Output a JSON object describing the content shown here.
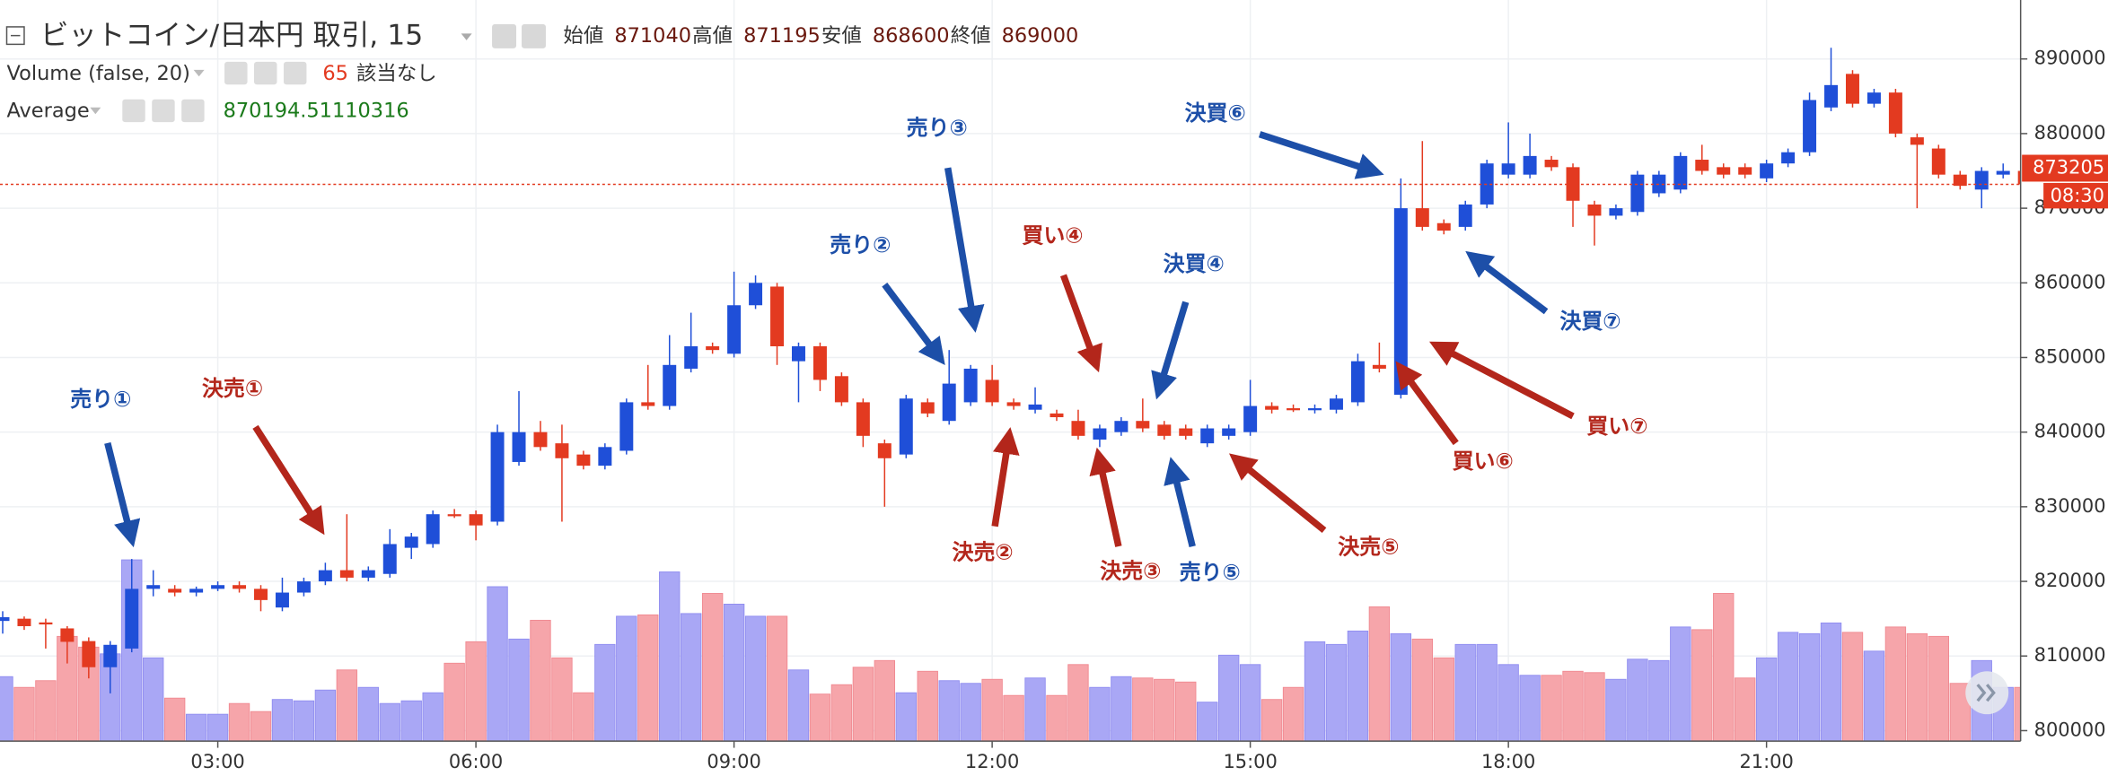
{
  "chart_data": {
    "type": "candlestick",
    "title": "ビットコイン/日本円 取引, 15",
    "ohlc_labels": [
      "始値",
      "高値",
      "安値",
      "終値"
    ],
    "ohlc_values": [
      871040,
      871195,
      868600,
      869000
    ],
    "indicators": [
      {
        "name": "Volume (false, 20)",
        "value": 65,
        "note": "該当なし"
      },
      {
        "name": "Average",
        "value": 870194.51110316
      }
    ],
    "last_price": 873205,
    "countdown": "08:30",
    "up_color": "#1f4fd8",
    "down_color": "#e33a20",
    "volume_up_color": "#a9a7f5",
    "volume_down_color": "#f6a5aa",
    "grid": true,
    "x": [
      "00:30",
      "00:45",
      "01:00",
      "01:15",
      "01:30",
      "01:45",
      "02:00",
      "02:15",
      "02:30",
      "02:45",
      "03:00",
      "03:15",
      "03:30",
      "03:45",
      "04:00",
      "04:15",
      "04:30",
      "04:45",
      "05:00",
      "05:15",
      "05:30",
      "05:45",
      "06:00",
      "06:15",
      "06:30",
      "06:45",
      "07:00",
      "07:15",
      "07:30",
      "07:45",
      "08:00",
      "08:15",
      "08:30",
      "08:45",
      "09:00",
      "09:15",
      "09:30",
      "09:45",
      "10:00",
      "10:15",
      "10:30",
      "10:45",
      "11:00",
      "11:15",
      "11:30",
      "11:45",
      "12:00",
      "12:15",
      "12:30",
      "12:45",
      "13:00",
      "13:15",
      "13:30",
      "13:45",
      "14:00",
      "14:15",
      "14:30",
      "14:45",
      "15:00",
      "15:15",
      "15:30",
      "15:45",
      "16:00",
      "16:15",
      "16:30",
      "16:45",
      "17:00",
      "17:15",
      "17:30",
      "17:45",
      "18:00",
      "18:15",
      "18:30",
      "18:45",
      "19:00",
      "19:15",
      "19:30",
      "19:45",
      "20:00",
      "20:15",
      "20:30",
      "20:45",
      "21:00",
      "21:15",
      "21:30",
      "21:45",
      "22:00",
      "22:15",
      "22:30",
      "22:45",
      "23:00",
      "23:15",
      "23:30",
      "23:45",
      "00:00"
    ],
    "open": [
      814700,
      815000,
      814500,
      813700,
      812000,
      808500,
      811000,
      819000,
      819000,
      818500,
      819000,
      819500,
      819000,
      816500,
      818500,
      820000,
      821500,
      820500,
      821000,
      824500,
      825000,
      829000,
      829000,
      828000,
      836000,
      840000,
      838500,
      837000,
      835500,
      837500,
      844000,
      843500,
      848500,
      851500,
      850500,
      857000,
      859500,
      849500,
      851500,
      847500,
      844000,
      838500,
      837000,
      844000,
      841500,
      844000,
      847000,
      844000,
      843000,
      842500,
      841500,
      839000,
      840000,
      841500,
      841000,
      840500,
      838500,
      839500,
      840000,
      843500,
      843200,
      843000,
      843000,
      844000,
      849000,
      845000,
      870000,
      868000,
      867500,
      870500,
      874500,
      874500,
      876500,
      875500,
      870500,
      869000,
      869500,
      872000,
      872500,
      876500,
      875500,
      875500,
      874000,
      876000,
      877500,
      883500,
      888000,
      884000,
      885500,
      879500,
      878000,
      874500,
      872500,
      874500,
      875000
    ],
    "high": [
      816000,
      815300,
      815000,
      814000,
      812500,
      812000,
      823000,
      821500,
      819500,
      819300,
      820000,
      820000,
      819500,
      820500,
      820500,
      822500,
      829000,
      822000,
      827000,
      826500,
      829500,
      829700,
      829500,
      841000,
      845500,
      841500,
      841000,
      837500,
      838500,
      844500,
      849000,
      853000,
      856000,
      852000,
      861500,
      861000,
      860000,
      852000,
      852000,
      848000,
      844500,
      839000,
      845000,
      844500,
      851000,
      849000,
      849000,
      844500,
      846000,
      843000,
      843000,
      841000,
      842000,
      844500,
      841500,
      841000,
      841000,
      841000,
      847000,
      844000,
      843700,
      843700,
      845000,
      850500,
      852000,
      874000,
      879000,
      868500,
      871000,
      876500,
      881500,
      880000,
      877000,
      876000,
      871000,
      870500,
      875000,
      875000,
      877500,
      878500,
      876000,
      876000,
      876500,
      878000,
      885500,
      891500,
      888500,
      886000,
      886000,
      880000,
      878500,
      875000,
      875500,
      876000,
      875500
    ],
    "low": [
      813000,
      813500,
      811000,
      809000,
      807000,
      805000,
      810500,
      818000,
      818000,
      818000,
      818700,
      818500,
      816000,
      816000,
      818000,
      819500,
      820000,
      820000,
      820500,
      823000,
      824500,
      828500,
      825500,
      827500,
      835500,
      837500,
      828000,
      835000,
      835000,
      837000,
      843000,
      843000,
      848000,
      850500,
      850000,
      856500,
      849000,
      844000,
      845500,
      843500,
      838000,
      830000,
      836500,
      842000,
      841000,
      843500,
      843500,
      843000,
      842500,
      841500,
      839000,
      838000,
      839500,
      840000,
      839000,
      839000,
      838000,
      839000,
      839500,
      842500,
      842700,
      842500,
      842500,
      843500,
      848000,
      844500,
      867000,
      866500,
      867000,
      870000,
      874000,
      874000,
      875000,
      867500,
      865000,
      868500,
      869000,
      871500,
      872000,
      874500,
      874000,
      874000,
      873500,
      875500,
      877000,
      883000,
      883500,
      883500,
      879500,
      870000,
      874000,
      872500,
      870000,
      874000,
      873000
    ],
    "close": [
      815200,
      814000,
      814400,
      811900,
      808500,
      811500,
      819000,
      819500,
      818500,
      819000,
      819500,
      819000,
      817500,
      818500,
      820000,
      821500,
      820500,
      821500,
      825000,
      826000,
      829000,
      828800,
      827500,
      840000,
      840000,
      838000,
      836500,
      835500,
      838000,
      844000,
      843500,
      849000,
      851500,
      851000,
      857000,
      860000,
      851500,
      851500,
      847000,
      844000,
      839500,
      836500,
      844500,
      842500,
      846500,
      848500,
      844000,
      843500,
      843700,
      842000,
      839500,
      840500,
      841500,
      840500,
      839500,
      839500,
      840500,
      840500,
      843500,
      843000,
      843000,
      843200,
      844500,
      849500,
      848500,
      870000,
      867500,
      867000,
      870500,
      876000,
      876000,
      877000,
      875500,
      871000,
      869000,
      870000,
      874500,
      874500,
      877000,
      875000,
      874500,
      874500,
      876000,
      877500,
      884500,
      886500,
      884000,
      885500,
      880000,
      878500,
      874500,
      873000,
      875000,
      875000,
      873205
    ],
    "volume": [
      48,
      40,
      45,
      78,
      70,
      65,
      135,
      62,
      32,
      20,
      20,
      28,
      22,
      31,
      30,
      38,
      53,
      40,
      28,
      30,
      36,
      58,
      74,
      115,
      76,
      90,
      62,
      36,
      72,
      93,
      94,
      126,
      95,
      110,
      102,
      93,
      93,
      53,
      35,
      42,
      55,
      60,
      36,
      52,
      45,
      43,
      46,
      34,
      47,
      34,
      57,
      40,
      48,
      47,
      46,
      44,
      29,
      64,
      57,
      31,
      40,
      74,
      72,
      82,
      100,
      80,
      76,
      62,
      72,
      72,
      57,
      49,
      49,
      52,
      51,
      46,
      61,
      60,
      85,
      83,
      110,
      47,
      62,
      81,
      80,
      88,
      81,
      67,
      85,
      80,
      78,
      43,
      60,
      40,
      40
    ],
    "ylim": [
      798600,
      897900
    ],
    "yticks": [
      800000,
      810000,
      820000,
      830000,
      840000,
      850000,
      860000,
      870000,
      880000,
      890000
    ],
    "xticks": [
      "03:00",
      "06:00",
      "09:00",
      "12:00",
      "15:00",
      "18:00",
      "21:00"
    ],
    "annotations": [
      {
        "text": "売り①",
        "color": "#1d4fa8"
      },
      {
        "text": "決売①",
        "color": "#b3261b"
      },
      {
        "text": "売り③",
        "color": "#1d4fa8"
      },
      {
        "text": "売り②",
        "color": "#1d4fa8"
      },
      {
        "text": "買い④",
        "color": "#b3261b"
      },
      {
        "text": "決買④",
        "color": "#1d4fa8"
      },
      {
        "text": "決売②",
        "color": "#b3261b"
      },
      {
        "text": "決売③",
        "color": "#b3261b"
      },
      {
        "text": "売り⑤",
        "color": "#1d4fa8"
      },
      {
        "text": "決売⑤",
        "color": "#b3261b"
      },
      {
        "text": "決買⑥",
        "color": "#1d4fa8"
      },
      {
        "text": "決買⑦",
        "color": "#1d4fa8"
      },
      {
        "text": "買い⑥",
        "color": "#b3261b"
      },
      {
        "text": "買い⑦",
        "color": "#b3261b"
      }
    ]
  }
}
